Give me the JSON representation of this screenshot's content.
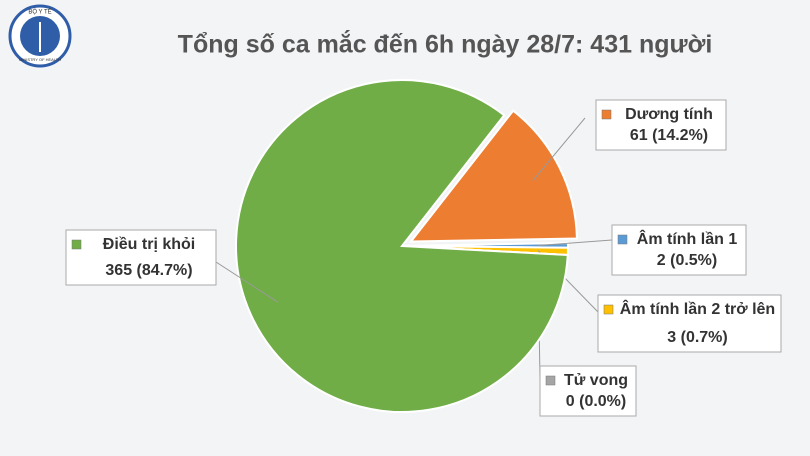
{
  "logo": {
    "top": "BỘ Y TẾ",
    "bottom": "MINISTRY OF HEALTH"
  },
  "chart_data": {
    "type": "pie",
    "title": "Tổng số ca mắc đến 6h ngày 28/7: 431 người",
    "categories": [
      "Dương tính",
      "Âm tính lần 1",
      "Âm tính lần 2 trở lên",
      "Tử vong",
      "Điều trị khỏi"
    ],
    "values": [
      61,
      2,
      3,
      0,
      365
    ],
    "value_labels": [
      "61 (14.2%)",
      "2 (0.5%)",
      "3 (0.7%)",
      "0 (0.0%)",
      "365 (84.7%)"
    ],
    "colors": [
      "#ed7d31",
      "#5b9bd5",
      "#ffc000",
      "#a5a5a5",
      "#70ad47"
    ]
  }
}
